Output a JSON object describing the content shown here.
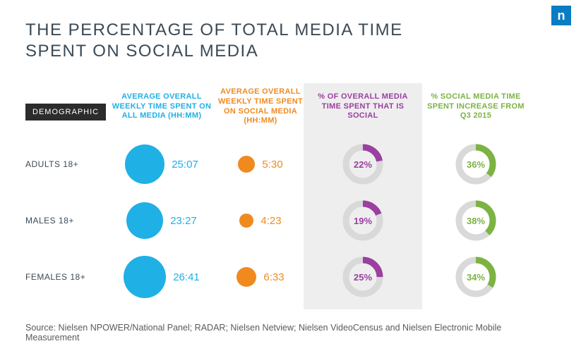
{
  "logo_letter": "n",
  "title_line1": "THE PERCENTAGE OF TOTAL MEDIA TIME",
  "title_line2": "SPENT ON SOCIAL MEDIA",
  "headers": {
    "demographic": "DEMOGRAPHIC",
    "col1": "AVERAGE OVERALL WEEKLY TIME SPENT ON ALL MEDIA (HH:MM)",
    "col2": "AVERAGE OVERALL WEEKLY TIME SPENT ON SOCIAL MEDIA (HH:MM)",
    "col3": "% OF OVERALL MEDIA TIME SPENT THAT IS SOCIAL",
    "col4": "% SOCIAL MEDIA TIME SPENT INCREASE FROM Q3 2015"
  },
  "header_colors": {
    "col1": "#1fb0e6",
    "col2": "#f08a1f",
    "col3": "#9b3fa0",
    "col4": "#7cb342"
  },
  "rows": [
    {
      "label": "ADULTS 18+",
      "all_media": "25:07",
      "all_size": 56,
      "social": "5:30",
      "social_size": 24,
      "pct_social": 22,
      "pct_increase": 36
    },
    {
      "label": "MALES 18+",
      "all_media": "23:27",
      "all_size": 52,
      "social": "4:23",
      "social_size": 20,
      "pct_social": 19,
      "pct_increase": 38
    },
    {
      "label": "FEMALES 18+",
      "all_media": "26:41",
      "all_size": 60,
      "social": "6:33",
      "social_size": 28,
      "pct_social": 25,
      "pct_increase": 34
    }
  ],
  "style": {
    "circle1_color": "#1fb0e6",
    "circle2_color": "#f08a1f",
    "donut_track": "#d9d9d9",
    "donut1_arc": "#9b3fa0",
    "donut2_arc": "#7cb342",
    "donut_radius": 24,
    "donut_stroke": 9,
    "highlight_bg": "#eeeeee"
  },
  "source": "Source: Nielsen NPOWER/National Panel; RADAR; Nielsen Netview; Nielsen VideoCensus and Nielsen Electronic Mobile Measurement"
}
